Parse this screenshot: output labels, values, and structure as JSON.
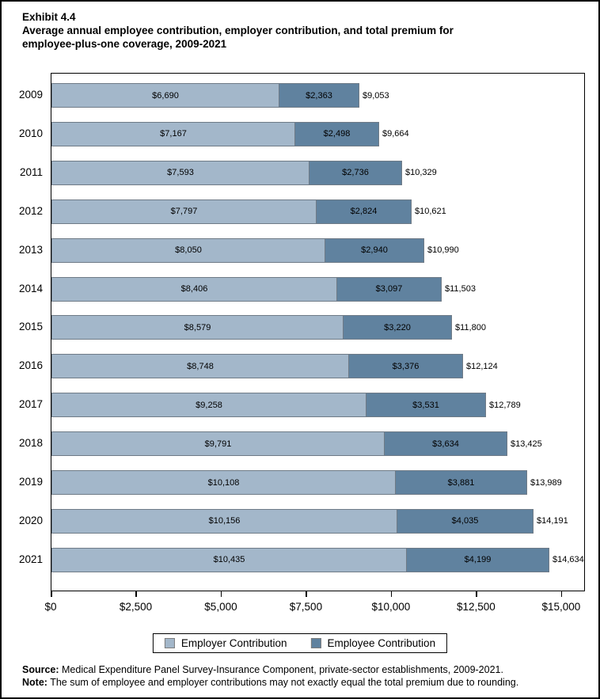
{
  "title": {
    "exhibit": "Exhibit 4.4",
    "line1": "Average annual employee contribution, employer contribution, and total premium for",
    "line2": "employee-plus-one coverage, 2009-2021"
  },
  "chart_data": {
    "type": "bar",
    "orientation": "horizontal",
    "stacked": true,
    "grid": false,
    "categories": [
      "2009",
      "2010",
      "2011",
      "2012",
      "2013",
      "2014",
      "2015",
      "2016",
      "2017",
      "2018",
      "2019",
      "2020",
      "2021"
    ],
    "series": [
      {
        "name": "Employer Contribution",
        "values": [
          6690,
          7167,
          7593,
          7797,
          8050,
          8406,
          8579,
          8748,
          9258,
          9791,
          10108,
          10156,
          10435
        ],
        "labels": [
          "$6,690",
          "$7,167",
          "$7,593",
          "$7,797",
          "$8,050",
          "$8,406",
          "$8,579",
          "$8,748",
          "$9,258",
          "$9,791",
          "$10,108",
          "$10,156",
          "$10,435"
        ]
      },
      {
        "name": "Employee Contribution",
        "values": [
          2363,
          2498,
          2736,
          2824,
          2940,
          3097,
          3220,
          3376,
          3531,
          3634,
          3881,
          4035,
          4199
        ],
        "labels": [
          "$2,363",
          "$2,498",
          "$2,736",
          "$2,824",
          "$2,940",
          "$3,097",
          "$3,220",
          "$3,376",
          "$3,531",
          "$3,634",
          "$3,881",
          "$4,035",
          "$4,199"
        ]
      }
    ],
    "totals": [
      9053,
      9664,
      10329,
      10621,
      10990,
      11503,
      11800,
      12124,
      12789,
      13425,
      13989,
      14191,
      14634
    ],
    "total_labels": [
      "$9,053",
      "$9,664",
      "$10,329",
      "$10,621",
      "$10,990",
      "$11,503",
      "$11,800",
      "$12,124",
      "$12,789",
      "$13,425",
      "$13,989",
      "$14,191",
      "$14,634"
    ],
    "xlabel": "",
    "ylabel": "",
    "xlim": [
      0,
      15700
    ],
    "x_ticks": [
      0,
      2500,
      5000,
      7500,
      10000,
      12500,
      15000
    ],
    "x_tick_labels": [
      "$0",
      "$2,500",
      "$5,000",
      "$7,500",
      "$10,000",
      "$12,500",
      "$15,000"
    ],
    "legend": [
      "Employer Contribution",
      "Employee Contribution"
    ],
    "legend_position": "bottom-center"
  },
  "colors": {
    "employer": "#a3b7ca",
    "employee": "#60829f",
    "bar_border": "#6f7b87",
    "text": "#000000"
  },
  "footer": {
    "source_label": "Source:",
    "source_text": " Medical Expenditure Panel Survey-Insurance Component, private-sector establishments, 2009-2021.",
    "note_label": "Note:",
    "note_text": " The sum of employee and employer contributions may not exactly equal the total premium due to rounding."
  }
}
